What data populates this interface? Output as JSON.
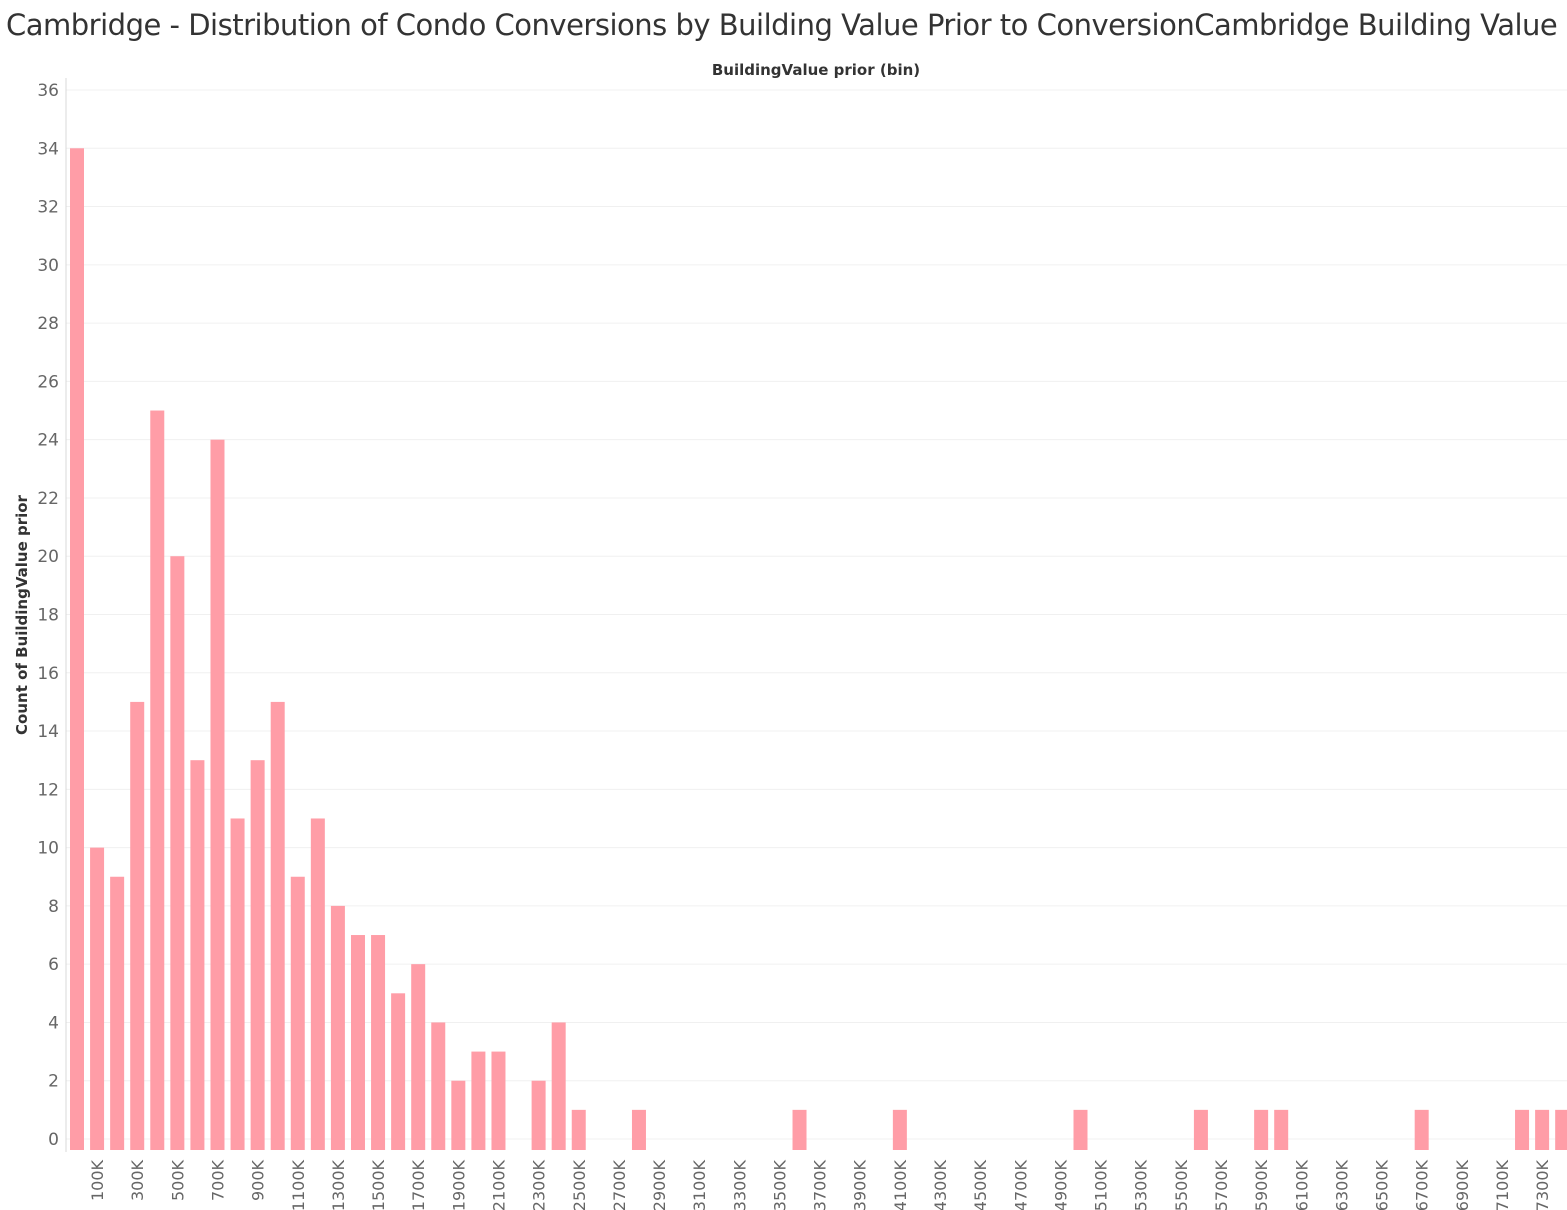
{
  "chart_data": {
    "type": "bar",
    "title": "Cambridge - Distribution of Condo Conversions by Building Value Prior to ConversionCambridge Building Value",
    "xlabel": "BuildingValue prior (bin)",
    "ylabel": "Count of BuildingValue prior",
    "ylim": [
      0,
      36
    ],
    "yticks": [
      0,
      2,
      4,
      6,
      8,
      10,
      12,
      14,
      16,
      18,
      20,
      22,
      24,
      26,
      28,
      30,
      32,
      34,
      36
    ],
    "grid": true,
    "bar_color": "#ff9da7",
    "categories": [
      "0K",
      "100K",
      "200K",
      "300K",
      "400K",
      "500K",
      "600K",
      "700K",
      "800K",
      "900K",
      "1000K",
      "1100K",
      "1200K",
      "1300K",
      "1400K",
      "1500K",
      "1600K",
      "1700K",
      "1800K",
      "1900K",
      "2000K",
      "2100K",
      "2200K",
      "2300K",
      "2400K",
      "2500K",
      "2600K",
      "2700K",
      "2800K",
      "2900K",
      "3000K",
      "3100K",
      "3200K",
      "3300K",
      "3400K",
      "3500K",
      "3600K",
      "3700K",
      "3800K",
      "3900K",
      "4000K",
      "4100K",
      "4200K",
      "4300K",
      "4400K",
      "4500K",
      "4600K",
      "4700K",
      "4800K",
      "4900K",
      "5000K",
      "5100K",
      "5200K",
      "5300K",
      "5400K",
      "5500K",
      "5600K",
      "5700K",
      "5800K",
      "5900K",
      "6000K",
      "6100K",
      "6200K",
      "6300K",
      "6400K",
      "6500K",
      "6600K",
      "6700K",
      "6800K",
      "6900K",
      "7000K",
      "7100K",
      "7200K",
      "7300K",
      "7400K"
    ],
    "values": [
      34,
      10,
      9,
      15,
      25,
      20,
      13,
      24,
      11,
      13,
      15,
      9,
      11,
      8,
      7,
      7,
      5,
      6,
      4,
      2,
      3,
      3,
      0,
      2,
      4,
      1,
      0,
      0,
      1,
      0,
      0,
      0,
      0,
      0,
      0,
      0,
      1,
      0,
      0,
      0,
      0,
      1,
      0,
      0,
      0,
      0,
      0,
      0,
      0,
      0,
      1,
      0,
      0,
      0,
      0,
      0,
      1,
      0,
      0,
      1,
      1,
      0,
      0,
      0,
      0,
      0,
      0,
      1,
      0,
      0,
      0,
      0,
      1,
      1,
      1
    ],
    "xtick_labels": [
      "100K",
      "300K",
      "500K",
      "700K",
      "900K",
      "1100K",
      "1300K",
      "1500K",
      "1700K",
      "1900K",
      "2100K",
      "2300K",
      "2500K",
      "2700K",
      "2900K",
      "3100K",
      "3300K",
      "3500K",
      "3700K",
      "3900K",
      "4100K",
      "4300K",
      "4500K",
      "4700K",
      "4900K",
      "5100K",
      "5300K",
      "5500K",
      "5700K",
      "5900K",
      "6100K",
      "6300K",
      "6500K",
      "6700K",
      "6900K",
      "7100K",
      "7300K"
    ]
  }
}
